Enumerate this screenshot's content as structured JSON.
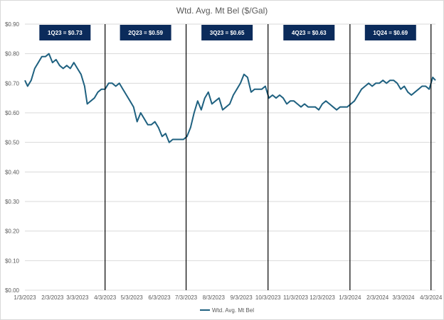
{
  "chart_data": {
    "type": "line",
    "title": "Wtd. Avg. Mt Bel ($/Gal)",
    "ylim": [
      0,
      0.9
    ],
    "y_ticks": [
      "$0.00",
      "$0.10",
      "$0.20",
      "$0.30",
      "$0.40",
      "$0.50",
      "$0.60",
      "$0.70",
      "$0.80",
      "$0.90"
    ],
    "x_ticks": [
      "1/3/2023",
      "2/3/2023",
      "3/3/2023",
      "4/3/2023",
      "5/3/2023",
      "6/3/2023",
      "7/3/2023",
      "8/3/2023",
      "9/3/2023",
      "10/3/2023",
      "11/3/2023",
      "12/3/2023",
      "1/3/2024",
      "2/3/2024",
      "3/3/2024",
      "4/3/2024"
    ],
    "grid": true,
    "legend": "bottom",
    "series": [
      {
        "name": "Wtd. Avg. Mt Bel",
        "color": "#1f6180",
        "x": [
          "2023-01-03",
          "2023-01-06",
          "2023-01-10",
          "2023-01-14",
          "2023-01-18",
          "2023-01-22",
          "2023-01-26",
          "2023-01-30",
          "2023-02-03",
          "2023-02-07",
          "2023-02-11",
          "2023-02-15",
          "2023-02-19",
          "2023-02-23",
          "2023-02-27",
          "2023-03-03",
          "2023-03-07",
          "2023-03-11",
          "2023-03-14",
          "2023-03-18",
          "2023-03-22",
          "2023-03-26",
          "2023-03-30",
          "2023-04-03",
          "2023-04-07",
          "2023-04-11",
          "2023-04-15",
          "2023-04-19",
          "2023-04-23",
          "2023-04-27",
          "2023-05-01",
          "2023-05-05",
          "2023-05-09",
          "2023-05-13",
          "2023-05-17",
          "2023-05-21",
          "2023-05-25",
          "2023-05-29",
          "2023-06-02",
          "2023-06-06",
          "2023-06-10",
          "2023-06-14",
          "2023-06-18",
          "2023-06-22",
          "2023-06-26",
          "2023-06-30",
          "2023-07-04",
          "2023-07-08",
          "2023-07-12",
          "2023-07-16",
          "2023-07-20",
          "2023-07-24",
          "2023-07-28",
          "2023-08-01",
          "2023-08-05",
          "2023-08-09",
          "2023-08-13",
          "2023-08-17",
          "2023-08-21",
          "2023-08-25",
          "2023-08-29",
          "2023-09-02",
          "2023-09-06",
          "2023-09-10",
          "2023-09-14",
          "2023-09-18",
          "2023-09-22",
          "2023-09-26",
          "2023-09-30",
          "2023-10-04",
          "2023-10-08",
          "2023-10-12",
          "2023-10-16",
          "2023-10-20",
          "2023-10-24",
          "2023-10-28",
          "2023-11-01",
          "2023-11-05",
          "2023-11-09",
          "2023-11-13",
          "2023-11-17",
          "2023-11-21",
          "2023-11-25",
          "2023-11-29",
          "2023-12-03",
          "2023-12-07",
          "2023-12-11",
          "2023-12-15",
          "2023-12-19",
          "2023-12-23",
          "2023-12-27",
          "2023-12-31",
          "2024-01-04",
          "2024-01-08",
          "2024-01-12",
          "2024-01-16",
          "2024-01-20",
          "2024-01-24",
          "2024-01-28",
          "2024-02-01",
          "2024-02-05",
          "2024-02-09",
          "2024-02-13",
          "2024-02-17",
          "2024-02-21",
          "2024-02-25",
          "2024-02-29",
          "2024-03-04",
          "2024-03-08",
          "2024-03-12",
          "2024-03-16",
          "2024-03-20",
          "2024-03-24",
          "2024-03-28",
          "2024-04-01",
          "2024-04-05",
          "2024-04-08"
        ],
        "y": [
          0.71,
          0.69,
          0.71,
          0.75,
          0.77,
          0.79,
          0.79,
          0.8,
          0.77,
          0.78,
          0.76,
          0.75,
          0.76,
          0.75,
          0.77,
          0.75,
          0.73,
          0.69,
          0.63,
          0.64,
          0.65,
          0.67,
          0.68,
          0.68,
          0.7,
          0.7,
          0.69,
          0.7,
          0.68,
          0.66,
          0.64,
          0.62,
          0.57,
          0.6,
          0.58,
          0.56,
          0.56,
          0.57,
          0.55,
          0.52,
          0.53,
          0.5,
          0.51,
          0.51,
          0.51,
          0.51,
          0.52,
          0.55,
          0.6,
          0.64,
          0.61,
          0.65,
          0.67,
          0.63,
          0.64,
          0.65,
          0.61,
          0.62,
          0.63,
          0.66,
          0.68,
          0.7,
          0.73,
          0.72,
          0.67,
          0.68,
          0.68,
          0.68,
          0.69,
          0.65,
          0.66,
          0.65,
          0.66,
          0.65,
          0.63,
          0.64,
          0.64,
          0.63,
          0.62,
          0.63,
          0.62,
          0.62,
          0.62,
          0.61,
          0.63,
          0.64,
          0.63,
          0.62,
          0.61,
          0.62,
          0.62,
          0.62,
          0.63,
          0.64,
          0.66,
          0.68,
          0.69,
          0.7,
          0.69,
          0.7,
          0.7,
          0.71,
          0.7,
          0.71,
          0.71,
          0.7,
          0.68,
          0.69,
          0.67,
          0.66,
          0.67,
          0.68,
          0.69,
          0.69,
          0.68,
          0.72,
          0.71
        ]
      }
    ],
    "quarters": [
      {
        "label": "1Q23 = $0.73"
      },
      {
        "label": "2Q23 = $0.59"
      },
      {
        "label": "3Q23 = $0.65"
      },
      {
        "label": "4Q23 = $0.63"
      },
      {
        "label": "1Q24 = $0.69"
      }
    ],
    "quarter_boundaries": [
      "2023-04-03",
      "2023-07-03",
      "2023-10-03",
      "2024-01-03",
      "2024-04-03"
    ]
  },
  "colors": {
    "line": "#1f6180",
    "label_box": "#0b2b5b",
    "grid": "#d9d9d9",
    "divider": "#000000"
  }
}
